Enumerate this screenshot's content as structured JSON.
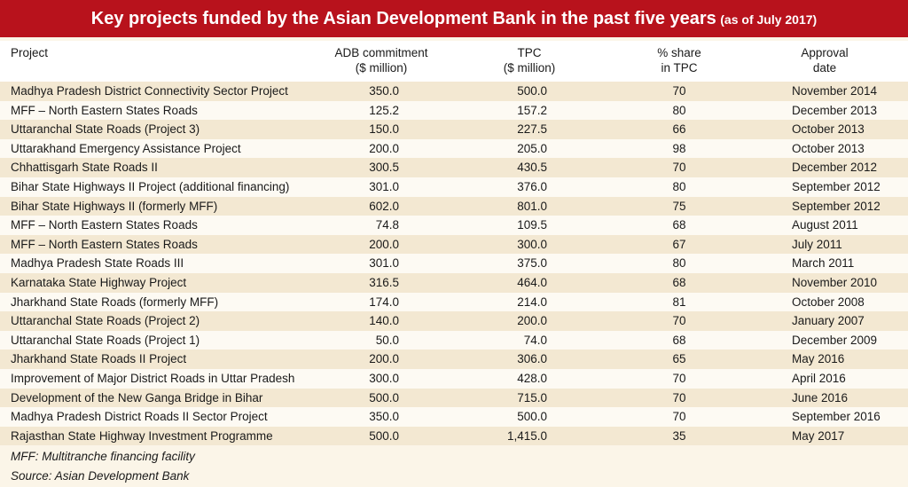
{
  "header": {
    "title": "Key projects funded by the Asian Development Bank in the past five years",
    "title_note": "(as of July 2017)"
  },
  "table": {
    "columns": [
      [
        "Project"
      ],
      [
        "ADB commitment",
        "($ million)"
      ],
      [
        "TPC",
        "($ million)"
      ],
      [
        "% share",
        "in TPC"
      ],
      [
        "Approval",
        "date"
      ]
    ],
    "rows": [
      [
        "Madhya Pradesh District Connectivity Sector Project",
        "350.0",
        "500.0",
        "70",
        "November 2014"
      ],
      [
        "MFF – North Eastern States Roads",
        "125.2",
        "157.2",
        "80",
        "December 2013"
      ],
      [
        "Uttaranchal State Roads (Project 3)",
        "150.0",
        "227.5",
        "66",
        "October 2013"
      ],
      [
        "Uttarakhand Emergency Assistance Project",
        "200.0",
        "205.0",
        "98",
        "October 2013"
      ],
      [
        "Chhattisgarh State Roads II",
        "300.5",
        "430.5",
        "70",
        "December 2012"
      ],
      [
        "Bihar State Highways II Project (additional financing)",
        "301.0",
        "376.0",
        "80",
        "September 2012"
      ],
      [
        "Bihar State Highways II (formerly MFF)",
        "602.0",
        "801.0",
        "75",
        "September 2012"
      ],
      [
        "MFF – North Eastern States Roads",
        "74.8",
        "109.5",
        "68",
        "August 2011"
      ],
      [
        "MFF – North Eastern States Roads",
        "200.0",
        "300.0",
        "67",
        "July 2011"
      ],
      [
        "Madhya Pradesh State Roads III",
        "301.0",
        "375.0",
        "80",
        "March 2011"
      ],
      [
        "Karnataka State Highway Project",
        "316.5",
        "464.0",
        "68",
        "November 2010"
      ],
      [
        "Jharkhand State Roads (formerly MFF)",
        "174.0",
        "214.0",
        "81",
        "October 2008"
      ],
      [
        "Uttaranchal State Roads (Project 2)",
        "140.0",
        "200.0",
        "70",
        "January 2007"
      ],
      [
        "Uttaranchal State Roads (Project 1)",
        "50.0",
        "74.0",
        "68",
        "December 2009"
      ],
      [
        "Jharkhand State Roads II Project",
        "200.0",
        "306.0",
        "65",
        "May 2016"
      ],
      [
        "Improvement of Major District Roads in Uttar Pradesh",
        "300.0",
        "428.0",
        "70",
        "April 2016"
      ],
      [
        "Development of the New Ganga Bridge in Bihar",
        "500.0",
        "715.0",
        "70",
        "June 2016"
      ],
      [
        "Madhya Pradesh District Roads II Sector Project",
        "350.0",
        "500.0",
        "70",
        "September 2016"
      ],
      [
        "Rajasthan State Highway Investment Programme",
        "500.0",
        "1,415.0",
        "35",
        "May 2017"
      ]
    ]
  },
  "notes": [
    "MFF: Multitranche financing facility",
    "Source: Asian Development Bank"
  ]
}
